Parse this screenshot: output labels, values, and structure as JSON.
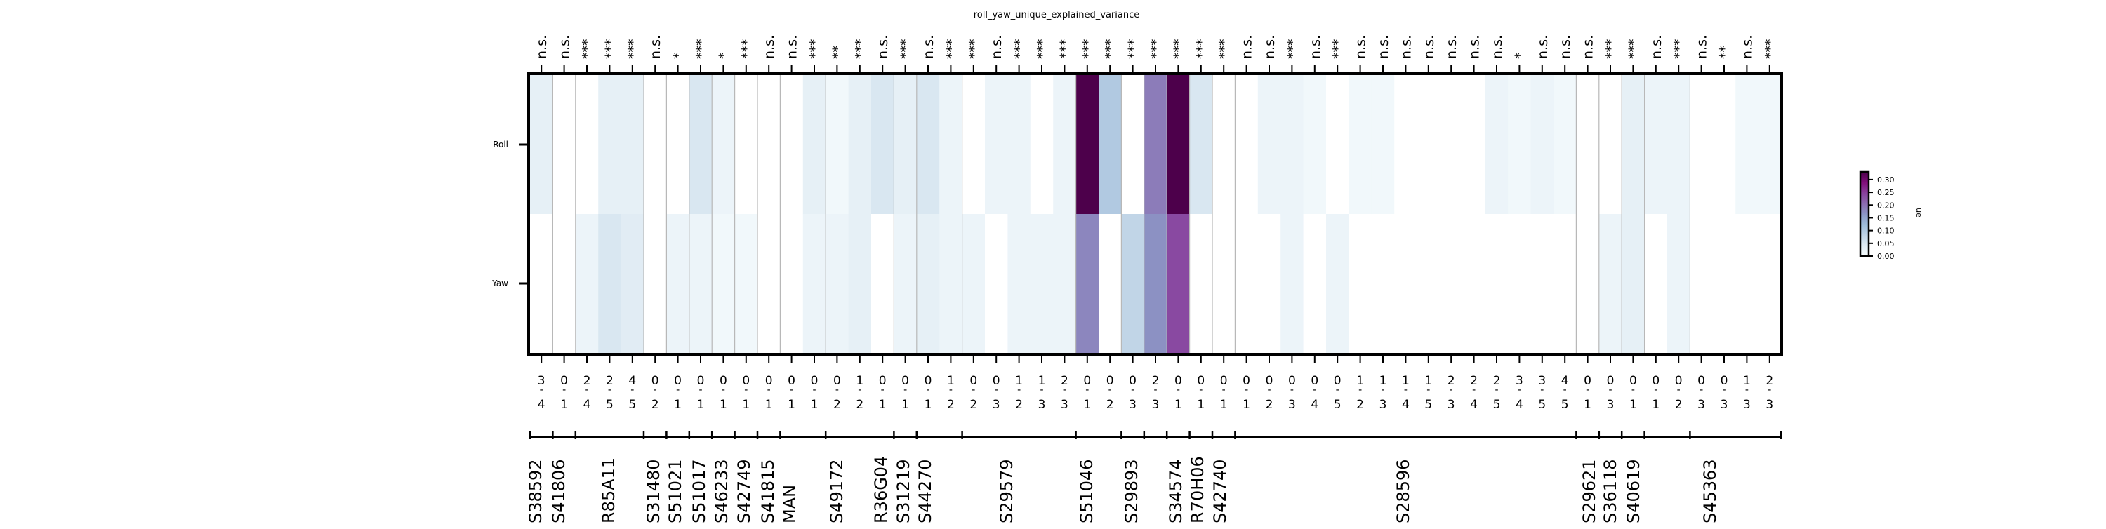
{
  "chart_data": {
    "type": "heatmap",
    "title": "roll_yaw_unique_explained_variance",
    "rows": [
      "Roll",
      "Yaw"
    ],
    "columns": [
      {
        "top": "3",
        "bottom": "4",
        "sig": "n.s.",
        "roll": 0.03,
        "yaw": 0.0
      },
      {
        "top": "0",
        "bottom": "1",
        "sig": "n.s.",
        "roll": 0.0,
        "yaw": 0.0
      },
      {
        "top": "2",
        "bottom": "4",
        "sig": "***",
        "roll": 0.0,
        "yaw": 0.02
      },
      {
        "top": "2",
        "bottom": "5",
        "sig": "***",
        "roll": 0.03,
        "yaw": 0.05
      },
      {
        "top": "4",
        "bottom": "5",
        "sig": "***",
        "roll": 0.03,
        "yaw": 0.04
      },
      {
        "top": "0",
        "bottom": "2",
        "sig": "n.s.",
        "roll": 0.0,
        "yaw": 0.0
      },
      {
        "top": "0",
        "bottom": "1",
        "sig": "*",
        "roll": 0.0,
        "yaw": 0.02
      },
      {
        "top": "0",
        "bottom": "1",
        "sig": "***",
        "roll": 0.05,
        "yaw": 0.02
      },
      {
        "top": "0",
        "bottom": "1",
        "sig": "*",
        "roll": 0.02,
        "yaw": 0.01
      },
      {
        "top": "0",
        "bottom": "1",
        "sig": "***",
        "roll": 0.0,
        "yaw": 0.01
      },
      {
        "top": "0",
        "bottom": "1",
        "sig": "n.s.",
        "roll": 0.0,
        "yaw": 0.0
      },
      {
        "top": "0",
        "bottom": "1",
        "sig": "n.s.",
        "roll": 0.0,
        "yaw": 0.0
      },
      {
        "top": "0",
        "bottom": "1",
        "sig": "***",
        "roll": 0.03,
        "yaw": 0.02
      },
      {
        "top": "0",
        "bottom": "2",
        "sig": "**",
        "roll": 0.01,
        "yaw": 0.02
      },
      {
        "top": "1",
        "bottom": "2",
        "sig": "***",
        "roll": 0.03,
        "yaw": 0.03
      },
      {
        "top": "0",
        "bottom": "1",
        "sig": "n.s.",
        "roll": 0.05,
        "yaw": 0.0
      },
      {
        "top": "0",
        "bottom": "1",
        "sig": "***",
        "roll": 0.03,
        "yaw": 0.02
      },
      {
        "top": "0",
        "bottom": "1",
        "sig": "n.s.",
        "roll": 0.05,
        "yaw": 0.03
      },
      {
        "top": "1",
        "bottom": "2",
        "sig": "***",
        "roll": 0.02,
        "yaw": 0.02
      },
      {
        "top": "0",
        "bottom": "2",
        "sig": "***",
        "roll": 0.0,
        "yaw": 0.02
      },
      {
        "top": "0",
        "bottom": "3",
        "sig": "n.s.",
        "roll": 0.02,
        "yaw": 0.0
      },
      {
        "top": "1",
        "bottom": "2",
        "sig": "***",
        "roll": 0.02,
        "yaw": 0.02
      },
      {
        "top": "1",
        "bottom": "3",
        "sig": "***",
        "roll": 0.0,
        "yaw": 0.02
      },
      {
        "top": "2",
        "bottom": "3",
        "sig": "***",
        "roll": 0.02,
        "yaw": 0.02
      },
      {
        "top": "0",
        "bottom": "1",
        "sig": "***",
        "roll": 0.33,
        "yaw": 0.18
      },
      {
        "top": "0",
        "bottom": "2",
        "sig": "***",
        "roll": 0.1,
        "yaw": 0.0
      },
      {
        "top": "0",
        "bottom": "3",
        "sig": "***",
        "roll": 0.0,
        "yaw": 0.08
      },
      {
        "top": "2",
        "bottom": "3",
        "sig": "***",
        "roll": 0.19,
        "yaw": 0.17
      },
      {
        "top": "0",
        "bottom": "1",
        "sig": "***",
        "roll": 0.36,
        "yaw": 0.24
      },
      {
        "top": "0",
        "bottom": "1",
        "sig": "***",
        "roll": 0.05,
        "yaw": 0.0
      },
      {
        "top": "0",
        "bottom": "1",
        "sig": "***",
        "roll": 0.0,
        "yaw": 0.0
      },
      {
        "top": "0",
        "bottom": "1",
        "sig": "n.s.",
        "roll": 0.0,
        "yaw": 0.0
      },
      {
        "top": "0",
        "bottom": "2",
        "sig": "n.s.",
        "roll": 0.02,
        "yaw": 0.0
      },
      {
        "top": "0",
        "bottom": "3",
        "sig": "***",
        "roll": 0.02,
        "yaw": 0.02
      },
      {
        "top": "0",
        "bottom": "4",
        "sig": "n.s.",
        "roll": 0.01,
        "yaw": 0.0
      },
      {
        "top": "0",
        "bottom": "5",
        "sig": "***",
        "roll": 0.0,
        "yaw": 0.02
      },
      {
        "top": "1",
        "bottom": "2",
        "sig": "n.s.",
        "roll": 0.01,
        "yaw": 0.0
      },
      {
        "top": "1",
        "bottom": "3",
        "sig": "n.s.",
        "roll": 0.01,
        "yaw": 0.0
      },
      {
        "top": "1",
        "bottom": "4",
        "sig": "n.s.",
        "roll": 0.0,
        "yaw": 0.0
      },
      {
        "top": "1",
        "bottom": "5",
        "sig": "n.s.",
        "roll": 0.0,
        "yaw": 0.0
      },
      {
        "top": "2",
        "bottom": "3",
        "sig": "n.s.",
        "roll": 0.0,
        "yaw": 0.0
      },
      {
        "top": "2",
        "bottom": "4",
        "sig": "n.s.",
        "roll": 0.0,
        "yaw": 0.0
      },
      {
        "top": "2",
        "bottom": "5",
        "sig": "n.s.",
        "roll": 0.02,
        "yaw": 0.0
      },
      {
        "top": "3",
        "bottom": "4",
        "sig": "*",
        "roll": 0.01,
        "yaw": 0.0
      },
      {
        "top": "3",
        "bottom": "5",
        "sig": "n.s.",
        "roll": 0.02,
        "yaw": 0.0
      },
      {
        "top": "4",
        "bottom": "5",
        "sig": "n.s.",
        "roll": 0.01,
        "yaw": 0.0
      },
      {
        "top": "0",
        "bottom": "1",
        "sig": "n.s.",
        "roll": 0.0,
        "yaw": 0.0
      },
      {
        "top": "0",
        "bottom": "3",
        "sig": "***",
        "roll": 0.0,
        "yaw": 0.02
      },
      {
        "top": "0",
        "bottom": "1",
        "sig": "***",
        "roll": 0.03,
        "yaw": 0.03
      },
      {
        "top": "0",
        "bottom": "1",
        "sig": "n.s.",
        "roll": 0.02,
        "yaw": 0.0
      },
      {
        "top": "0",
        "bottom": "2",
        "sig": "***",
        "roll": 0.02,
        "yaw": 0.02
      },
      {
        "top": "0",
        "bottom": "3",
        "sig": "n.s.",
        "roll": 0.0,
        "yaw": 0.0
      },
      {
        "top": "0",
        "bottom": "3",
        "sig": "**",
        "roll": 0.0,
        "yaw": 0.0
      },
      {
        "top": "1",
        "bottom": "3",
        "sig": "n.s.",
        "roll": 0.01,
        "yaw": 0.0
      },
      {
        "top": "2",
        "bottom": "3",
        "sig": "***",
        "roll": 0.01,
        "yaw": 0.0
      }
    ],
    "group_labels": [
      "S38592",
      "S41806",
      "R85A11",
      "S31480",
      "S51021",
      "S51017",
      "S46233",
      "S42749",
      "S41815",
      "MAN",
      "S49172",
      "R36G04",
      "S31219",
      "S44270",
      "S29579",
      "S51046",
      "S29893",
      "S34574",
      "R70H06",
      "S42740",
      "S28596",
      "S29621",
      "S36118",
      "S40619",
      "S45363"
    ],
    "colorbar": {
      "label": "ue",
      "range": [
        0,
        0.33
      ],
      "ticks": [
        "0.00",
        "0.05",
        "0.10",
        "0.15",
        "0.20",
        "0.25",
        "0.30"
      ],
      "colormap": "BuPu",
      "colors": [
        "#f7fcfd",
        "#e0ecf4",
        "#bfd3e6",
        "#9ebcda",
        "#8c96c6",
        "#8c6bb1",
        "#88419d",
        "#810f7c",
        "#4d004b"
      ]
    }
  }
}
